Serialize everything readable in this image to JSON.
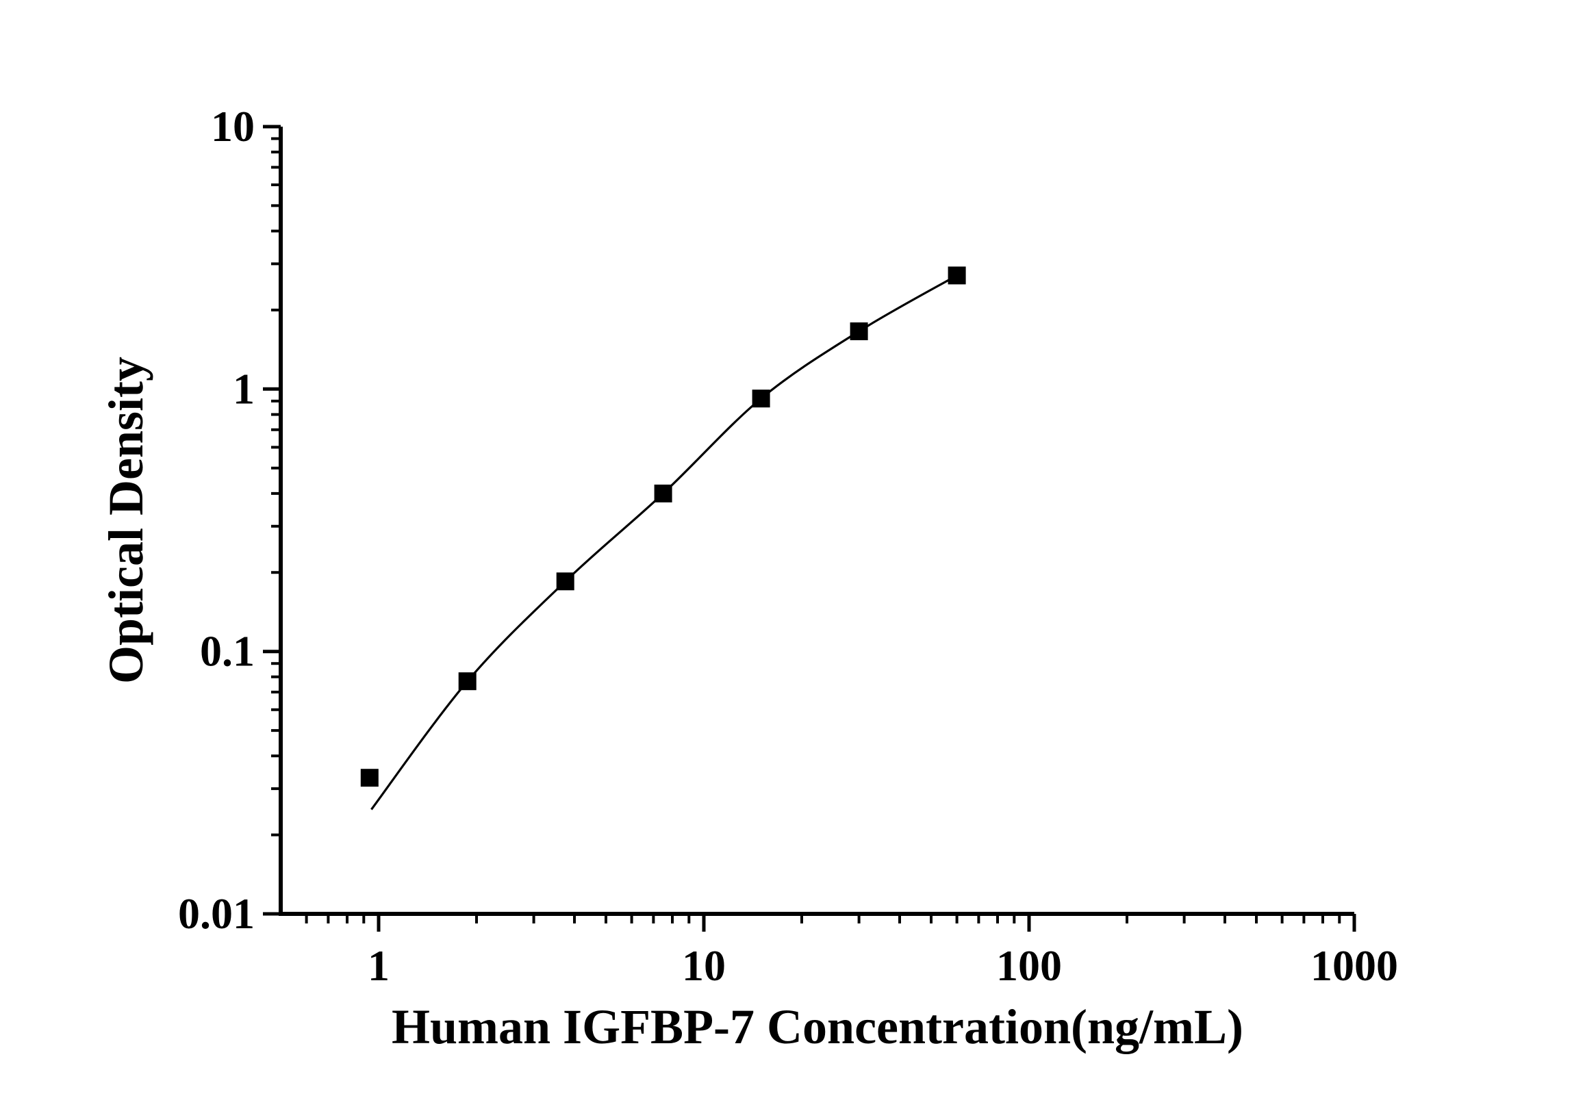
{
  "figure": {
    "background_color": "#ffffff",
    "foreground_color": "#000000"
  },
  "chart_data": {
    "type": "scatter",
    "title": "",
    "xlabel": "Human IGFBP-7 Concentration(ng/mL)",
    "ylabel": "Optical Density",
    "x_scale": "log",
    "y_scale": "log",
    "xlim": [
      0.5,
      1000
    ],
    "ylim": [
      0.01,
      10
    ],
    "grid": false,
    "legend": null,
    "x_major_ticks": {
      "values": [
        1,
        10,
        100,
        1000
      ],
      "labels": [
        "1",
        "10",
        "100",
        "1000"
      ]
    },
    "y_major_ticks": {
      "values": [
        0.01,
        0.1,
        1,
        10
      ],
      "labels": [
        "0.01",
        "0.1",
        "1",
        "10"
      ]
    },
    "minor_ticks": "log decades (2-9 per decade, outward)",
    "series": [
      {
        "name": "standard-curve-points",
        "marker": "filled-square",
        "color": "#000000",
        "x": [
          0.938,
          1.875,
          3.75,
          7.5,
          15,
          30,
          60
        ],
        "y": [
          0.033,
          0.077,
          0.185,
          0.4,
          0.92,
          1.66,
          2.71
        ]
      }
    ],
    "fitted_line": {
      "color": "#000000",
      "start": {
        "x": 0.95,
        "y": 0.025
      },
      "note": "smooth fitted curve starting just below first point, passing through points 2-7",
      "anchors_x": [
        0.95,
        1.875,
        3.75,
        7.5,
        15,
        30,
        60
      ],
      "anchors_y": [
        0.025,
        0.077,
        0.185,
        0.4,
        0.92,
        1.66,
        2.71
      ]
    }
  }
}
